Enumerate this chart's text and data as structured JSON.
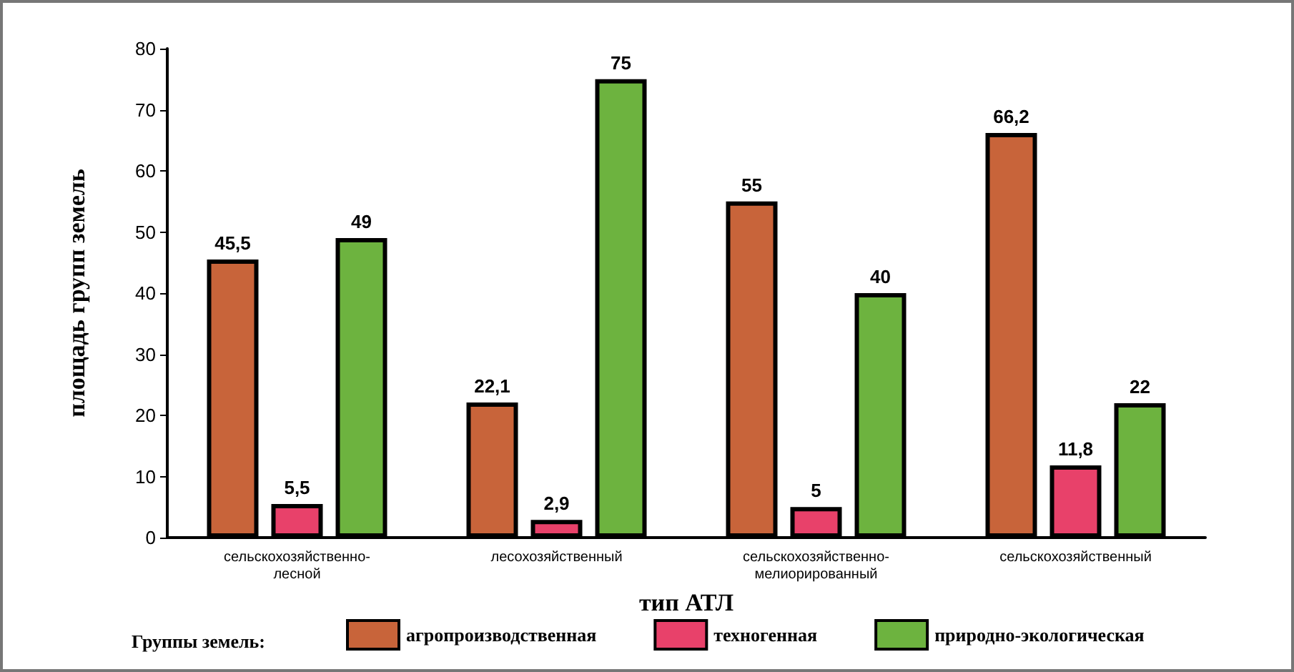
{
  "chart_data": {
    "type": "bar",
    "categories": [
      "сельскохозяйственно-лесной",
      "лесохозяйственный",
      "сельскохозяйственно-мелиорированный",
      "сельскохозяйственный"
    ],
    "series": [
      {
        "name": "агропроизводственная",
        "color": "#c8643a",
        "values": [
          45.5,
          22.1,
          55,
          66.2
        ],
        "value_labels": [
          "45,5",
          "22,1",
          "55",
          "66,2"
        ]
      },
      {
        "name": "техногенная",
        "color": "#e8416a",
        "values": [
          5.5,
          2.9,
          5,
          11.8
        ],
        "value_labels": [
          "5,5",
          "2,9",
          "5",
          "11,8"
        ]
      },
      {
        "name": "природно-экологическая",
        "color": "#6db33f",
        "values": [
          49,
          75,
          40,
          22
        ],
        "value_labels": [
          "49",
          "75",
          "40",
          "22"
        ]
      }
    ],
    "xlabel": "тип АТЛ",
    "ylabel": "площадь групп земель",
    "legend_title": "Группы земель:",
    "ylim": [
      0,
      80
    ],
    "yticks": [
      0,
      10,
      20,
      30,
      40,
      50,
      60,
      70,
      80
    ],
    "grid": false,
    "legend": "bottom"
  }
}
